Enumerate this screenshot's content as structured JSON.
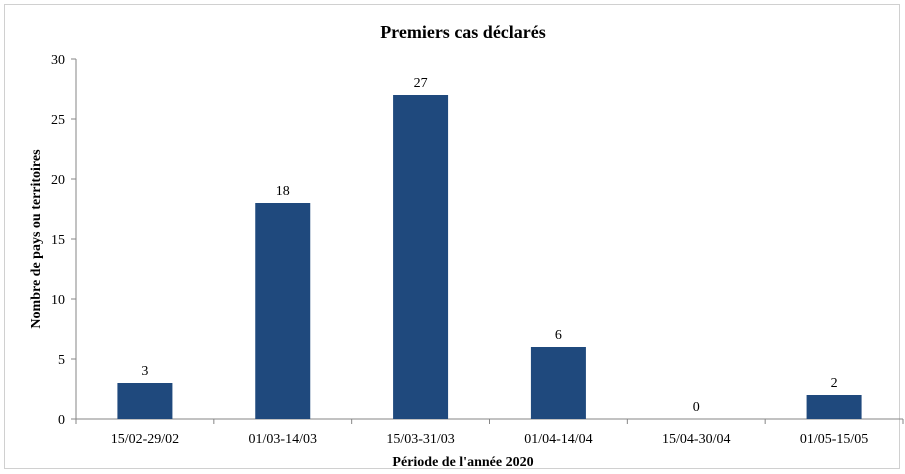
{
  "chart_data": {
    "type": "bar",
    "title": "Premiers cas déclarés",
    "xlabel": "Période de l'année 2020",
    "ylabel": "Nombre de pays ou territoires",
    "categories": [
      "15/02-29/02",
      "01/03-14/03",
      "15/03-31/03",
      "01/04-14/04",
      "15/04-30/04",
      "01/05-15/05"
    ],
    "values": [
      3,
      18,
      27,
      6,
      0,
      2
    ],
    "data_labels": [
      "3",
      "18",
      "27",
      "6",
      "0",
      "2"
    ],
    "ylim": [
      0,
      30
    ],
    "yticks": [
      0,
      5,
      10,
      15,
      20,
      25,
      30
    ],
    "grid": false,
    "legend": "none",
    "bar_color": "#1f497d"
  }
}
